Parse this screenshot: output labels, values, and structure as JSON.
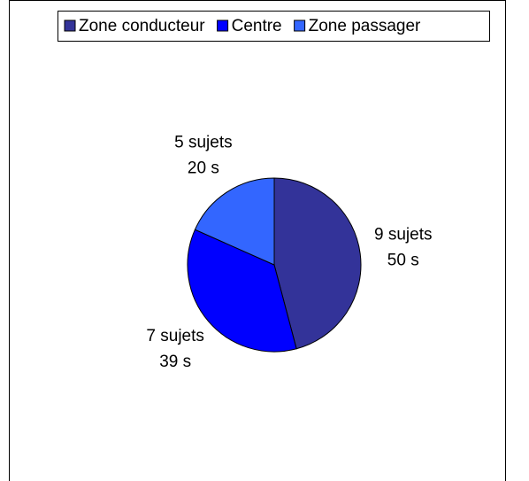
{
  "chart_data": {
    "type": "pie",
    "categories": [
      "Zone conducteur",
      "Centre",
      "Zone passager"
    ],
    "values": [
      50,
      39,
      20
    ],
    "value_labels": [
      [
        "9 sujets",
        "50 s"
      ],
      [
        "7 sujets",
        "39 s"
      ],
      [
        "5 sujets",
        "20 s"
      ]
    ],
    "colors": [
      "#333399",
      "#0000ff",
      "#3366ff"
    ],
    "legend": "top"
  }
}
